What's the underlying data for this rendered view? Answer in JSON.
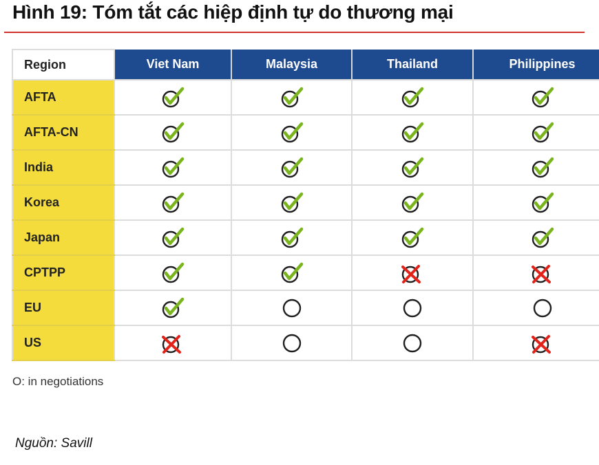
{
  "title": "Hình 19: Tóm tắt các hiệp định tự do thương mại",
  "table": {
    "header_region": "Region",
    "countries": [
      "Viet Nam",
      "Malaysia",
      "Thailand",
      "Philippines"
    ],
    "rows": [
      {
        "label": "AFTA",
        "status": [
          "yes",
          "yes",
          "yes",
          "yes"
        ]
      },
      {
        "label": "AFTA-CN",
        "status": [
          "yes",
          "yes",
          "yes",
          "yes"
        ]
      },
      {
        "label": "India",
        "status": [
          "yes",
          "yes",
          "yes",
          "yes"
        ]
      },
      {
        "label": "Korea",
        "status": [
          "yes",
          "yes",
          "yes",
          "yes"
        ]
      },
      {
        "label": "Japan",
        "status": [
          "yes",
          "yes",
          "yes",
          "yes"
        ]
      },
      {
        "label": "CPTPP",
        "status": [
          "yes",
          "yes",
          "no",
          "no"
        ]
      },
      {
        "label": "EU",
        "status": [
          "yes",
          "negotiating",
          "negotiating",
          "negotiating"
        ]
      },
      {
        "label": "US",
        "status": [
          "no",
          "negotiating",
          "negotiating",
          "no"
        ]
      }
    ]
  },
  "icons": {
    "yes": "circle-check-icon",
    "no": "circle-cross-icon",
    "negotiating": "circle-icon"
  },
  "colors": {
    "header_blue": "#1e4a8f",
    "label_yellow": "#f4dc3c",
    "check_green": "#7ab51d",
    "cross_red": "#e2231a",
    "title_rule_red": "#d0312d"
  },
  "footnote": "O: in negotiations",
  "source": "Nguồn: Savill"
}
